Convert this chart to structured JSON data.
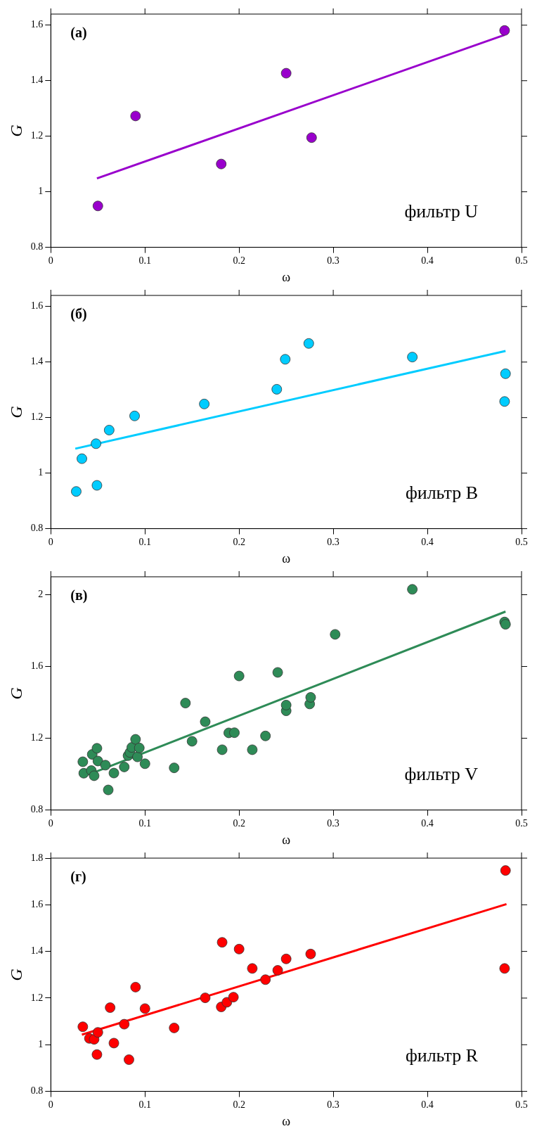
{
  "chart_data": [
    {
      "type": "scatter",
      "xlabel": "ω",
      "ylabel": "G",
      "xlim": [
        0,
        0.5
      ],
      "xticks": [
        0,
        0.1,
        0.2,
        0.3,
        0.4,
        0.5
      ],
      "ylim": [
        0.8,
        1.64
      ],
      "yticks": [
        0.8,
        1,
        1.2,
        1.4,
        1.6
      ],
      "grid": false,
      "legend": false,
      "annotations": [
        "(а)",
        "фильтр U"
      ],
      "series": [
        {
          "marker": "circle",
          "color": "#9900cc",
          "x": [
            0.05,
            0.09,
            0.181,
            0.25,
            0.277,
            0.482
          ],
          "values": [
            0.949,
            1.273,
            1.1,
            1.427,
            1.195,
            1.581
          ]
        },
        {
          "type": "line",
          "marker": "none",
          "color": "#9900cc",
          "x": [
            0.049,
            0.482
          ],
          "values": [
            1.048,
            1.565
          ]
        }
      ]
    },
    {
      "type": "scatter",
      "xlabel": "ω",
      "ylabel": "G",
      "xlim": [
        0,
        0.5
      ],
      "xticks": [
        0,
        0.1,
        0.2,
        0.3,
        0.4,
        0.5
      ],
      "ylim": [
        0.8,
        1.64
      ],
      "yticks": [
        0.8,
        1,
        1.2,
        1.4,
        1.6
      ],
      "grid": false,
      "legend": false,
      "annotations": [
        "(б)",
        "фильтр B"
      ],
      "series": [
        {
          "marker": "circle",
          "color": "#00ccff",
          "x": [
            0.027,
            0.033,
            0.048,
            0.049,
            0.062,
            0.089,
            0.163,
            0.24,
            0.249,
            0.274,
            0.384,
            0.483,
            0.482
          ],
          "values": [
            0.934,
            1.052,
            1.106,
            0.956,
            1.155,
            1.206,
            1.249,
            1.302,
            1.41,
            1.467,
            1.418,
            1.358,
            1.258
          ]
        },
        {
          "type": "line",
          "marker": "none",
          "color": "#00ccff",
          "x": [
            0.026,
            0.483
          ],
          "values": [
            1.088,
            1.44
          ]
        }
      ]
    },
    {
      "type": "scatter",
      "xlabel": "ω",
      "ylabel": "G",
      "xlim": [
        0,
        0.5
      ],
      "xticks": [
        0,
        0.1,
        0.2,
        0.3,
        0.4,
        0.5
      ],
      "ylim": [
        0.8,
        2.1
      ],
      "yticks": [
        0.8,
        1.2,
        1.6,
        2
      ],
      "grid": false,
      "legend": false,
      "annotations": [
        "(в)",
        "фильтр V"
      ],
      "series": [
        {
          "marker": "circle",
          "color": "#2e8b57",
          "x": [
            0.034,
            0.035,
            0.043,
            0.044,
            0.046,
            0.049,
            0.05,
            0.058,
            0.061,
            0.067,
            0.078,
            0.082,
            0.084,
            0.086,
            0.09,
            0.092,
            0.094,
            0.1,
            0.131,
            0.143,
            0.15,
            0.164,
            0.182,
            0.189,
            0.195,
            0.2,
            0.214,
            0.228,
            0.241,
            0.25,
            0.25,
            0.275,
            0.276,
            0.302,
            0.384,
            0.482,
            0.483
          ],
          "values": [
            1.069,
            1.005,
            1.02,
            1.11,
            0.991,
            1.144,
            1.073,
            1.05,
            0.912,
            1.006,
            1.04,
            1.103,
            1.121,
            1.149,
            1.194,
            1.096,
            1.146,
            1.058,
            1.035,
            1.396,
            1.183,
            1.292,
            1.136,
            1.23,
            1.231,
            1.547,
            1.136,
            1.213,
            1.567,
            1.353,
            1.385,
            1.391,
            1.428,
            1.779,
            2.03,
            1.848,
            1.835
          ]
        },
        {
          "type": "line",
          "marker": "none",
          "color": "#2e8b57",
          "x": [
            0.046,
            0.483
          ],
          "values": [
            1.01,
            1.906
          ]
        }
      ]
    },
    {
      "type": "scatter",
      "xlabel": "ω",
      "ylabel": "G",
      "xlim": [
        0,
        0.5
      ],
      "xticks": [
        0,
        0.1,
        0.2,
        0.3,
        0.4,
        0.5
      ],
      "ylim": [
        0.8,
        1.8
      ],
      "yticks": [
        0.8,
        1,
        1.2,
        1.4,
        1.6,
        1.8
      ],
      "grid": false,
      "legend": false,
      "annotations": [
        "(г)",
        "фильтр R"
      ],
      "series": [
        {
          "marker": "circle",
          "color": "#ff0000",
          "x": [
            0.034,
            0.041,
            0.046,
            0.05,
            0.049,
            0.063,
            0.067,
            0.078,
            0.083,
            0.09,
            0.1,
            0.131,
            0.164,
            0.181,
            0.182,
            0.187,
            0.194,
            0.2,
            0.214,
            0.228,
            0.241,
            0.25,
            0.276,
            0.483,
            0.482
          ],
          "values": [
            1.077,
            1.027,
            1.023,
            1.053,
            0.958,
            1.159,
            1.007,
            1.088,
            0.936,
            1.247,
            1.155,
            1.072,
            1.201,
            1.162,
            1.439,
            1.182,
            1.204,
            1.41,
            1.327,
            1.279,
            1.319,
            1.368,
            1.389,
            1.747,
            1.327
          ]
        },
        {
          "type": "line",
          "marker": "none",
          "color": "#ff0000",
          "x": [
            0.033,
            0.484
          ],
          "values": [
            1.043,
            1.603
          ]
        }
      ]
    }
  ]
}
